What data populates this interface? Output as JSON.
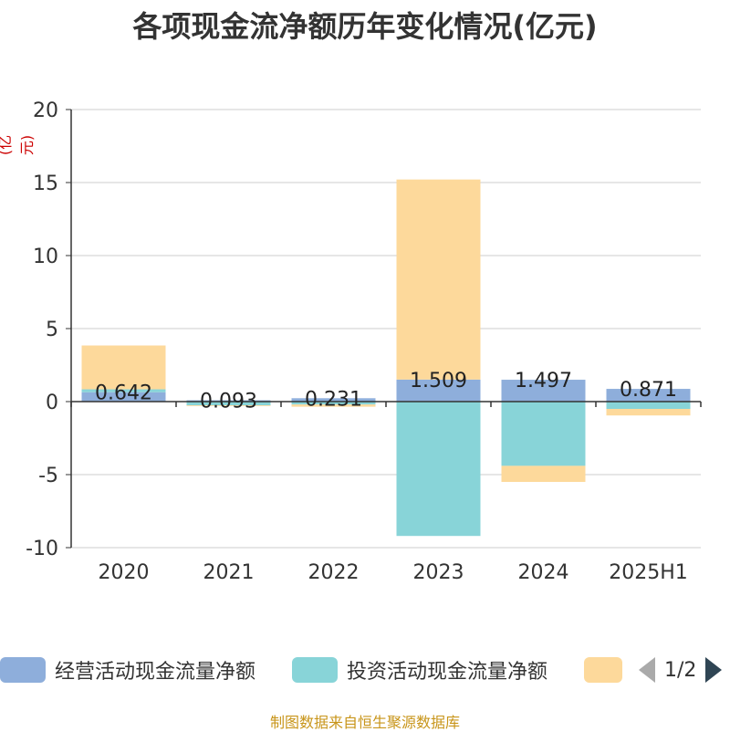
{
  "chart_data": {
    "type": "bar",
    "stacked": true,
    "title": "各项现金流净额历年变化情况(亿元)",
    "unit_label": "(亿元)",
    "categories": [
      "2020",
      "2021",
      "2022",
      "2023",
      "2024",
      "2025H1"
    ],
    "ylim": [
      -10,
      20
    ],
    "yticks": [
      -10,
      -5,
      0,
      5,
      10,
      15,
      20
    ],
    "grid": true,
    "series": [
      {
        "name": "经营活动现金流量净额",
        "color": "#8eaedb",
        "values": [
          0.642,
          0.093,
          0.231,
          1.509,
          1.497,
          0.871
        ]
      },
      {
        "name": "投资活动现金流量净额",
        "color": "#88d4d8",
        "values": [
          0.2,
          -0.25,
          -0.2,
          -9.2,
          -4.4,
          -0.5
        ]
      },
      {
        "name": "",
        "color": "#fdd99b",
        "values": [
          3.0,
          -0.05,
          -0.15,
          13.7,
          -1.1,
          -0.45
        ]
      }
    ],
    "data_labels": [
      "0.642",
      "0.093",
      "0.231",
      "1.509",
      "1.497",
      "0.871"
    ],
    "legend_position": "bottom"
  },
  "legend": {
    "page_text": "1/2"
  },
  "source": "制图数据来自恒生聚源数据库"
}
